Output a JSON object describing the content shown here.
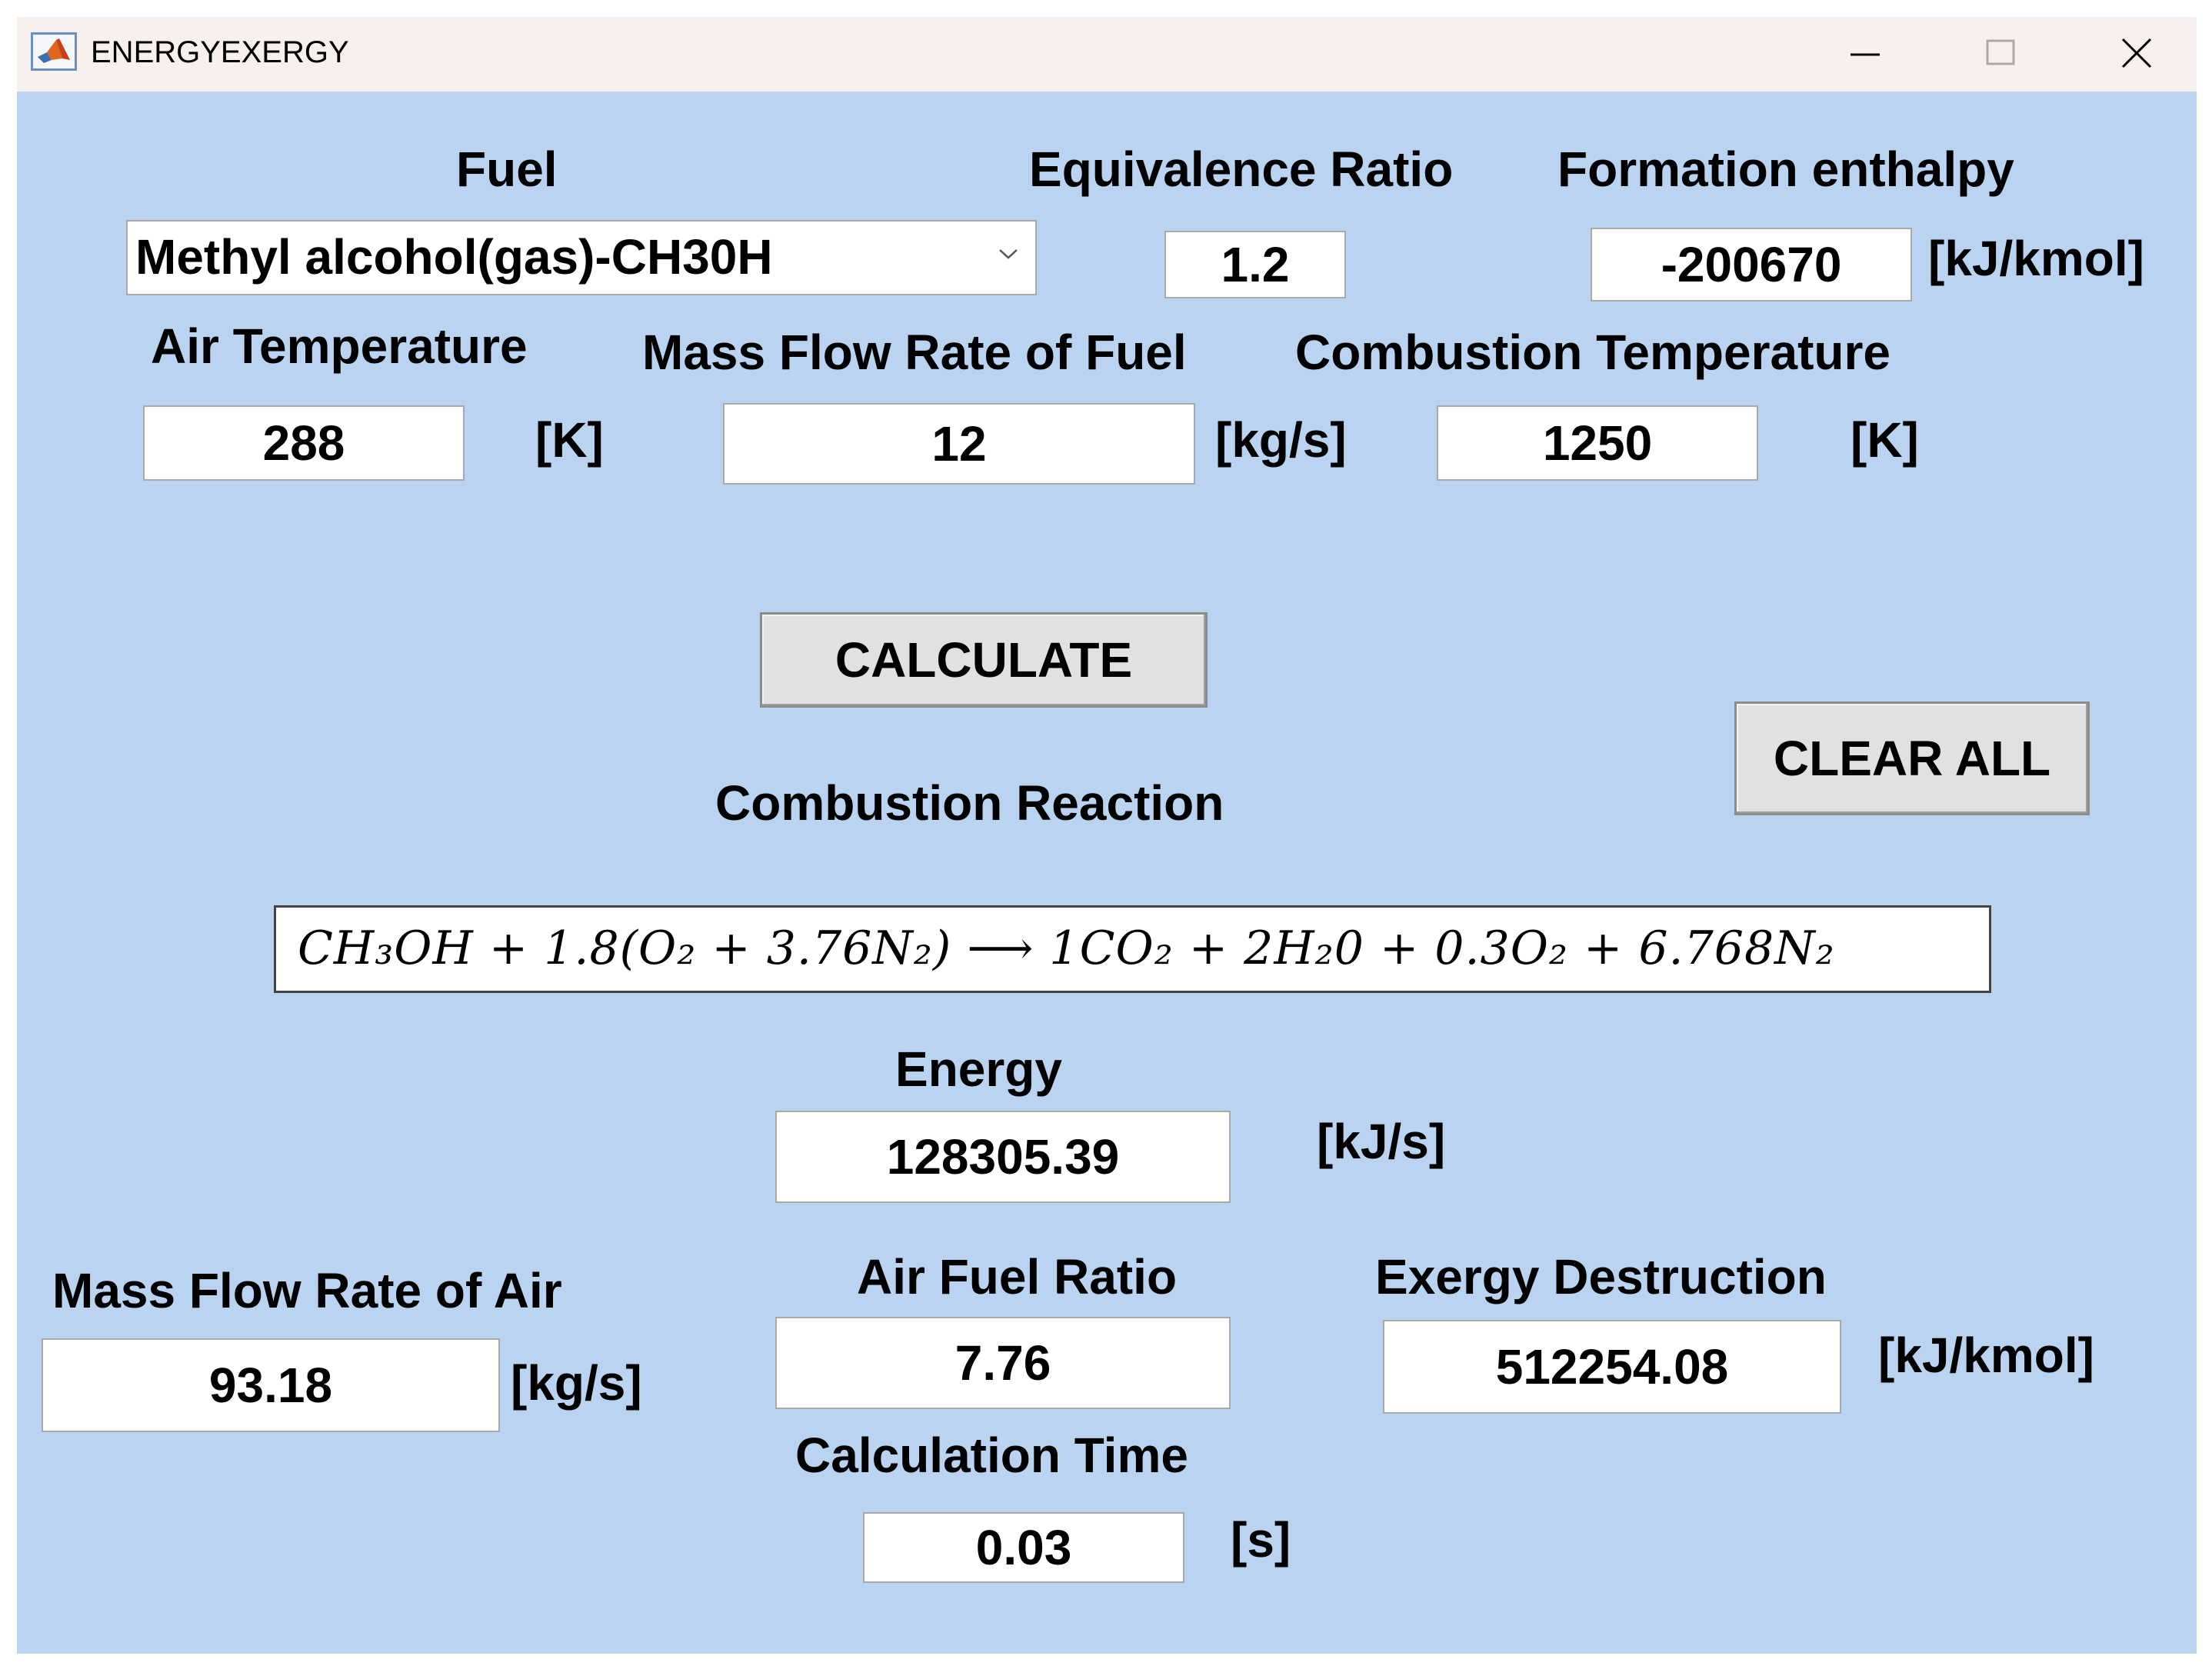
{
  "window": {
    "title": "ENERGYEXERGY"
  },
  "inputs": {
    "fuel": {
      "label": "Fuel",
      "value": "Methyl alcohol(gas)-CH30H"
    },
    "equivalence_ratio": {
      "label": "Equivalence Ratio",
      "value": "1.2"
    },
    "formation_enthalpy": {
      "label": "Formation enthalpy",
      "value": "-200670",
      "unit": "[kJ/kmol]"
    },
    "air_temperature": {
      "label": "Air Temperature",
      "value": "288",
      "unit": "[K]"
    },
    "mass_flow_fuel": {
      "label": "Mass Flow Rate of Fuel",
      "value": "12",
      "unit": "[kg/s]"
    },
    "combustion_temperature": {
      "label": "Combustion Temperature",
      "value": "1250",
      "unit": "[K]"
    }
  },
  "buttons": {
    "calculate": "CALCULATE",
    "clear_all": "CLEAR ALL"
  },
  "reaction": {
    "label": "Combustion Reaction",
    "equation": "CH₃OH + 1.8(O₂ + 3.76N₂) ⟶ 1CO₂ + 2H₂0 + 0.3O₂ + 6.768N₂"
  },
  "outputs": {
    "energy": {
      "label": "Energy",
      "value": "128305.39",
      "unit": "[kJ/s]"
    },
    "mass_flow_air": {
      "label": "Mass Flow Rate of Air",
      "value": "93.18",
      "unit": "[kg/s]"
    },
    "air_fuel_ratio": {
      "label": "Air Fuel Ratio",
      "value": "7.76"
    },
    "exergy_destruction": {
      "label": "Exergy Destruction",
      "value": "512254.08",
      "unit": "[kJ/kmol]"
    },
    "calculation_time": {
      "label": "Calculation Time",
      "value": "0.03",
      "unit": "[s]"
    }
  },
  "icons": {
    "app": "matlab-icon",
    "minimize": "minimize-icon",
    "maximize": "maximize-icon",
    "close": "close-icon",
    "dropdown": "chevron-down-icon"
  }
}
